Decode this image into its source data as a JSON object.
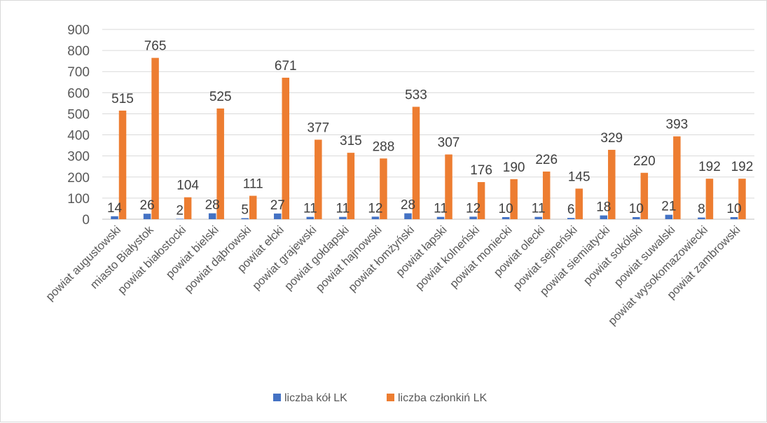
{
  "chart_data": {
    "type": "bar",
    "title": "",
    "xlabel": "",
    "ylabel": "",
    "ylim": [
      0,
      900
    ],
    "yticks": [
      0,
      100,
      200,
      300,
      400,
      500,
      600,
      700,
      800,
      900
    ],
    "grid": true,
    "legend_position": "bottom",
    "categories": [
      "powiat augustowski",
      "miasto Białystok",
      "powiat białostocki",
      "powiat bielski",
      "powiat dąbrowski",
      "powiat ełcki",
      "powiat grajewski",
      "powiat gołdapski",
      "powiat hajnowski",
      "powiat łomżyński",
      "powiat łapski",
      "powiat kolneński",
      "powiat moniecki",
      "powiat olecki",
      "powiat sejneński",
      "powiat siemiatycki",
      "powiat sokólski",
      "powiat suwalski",
      "powiat wysokomazowiecki",
      "powiat zambrowski"
    ],
    "series": [
      {
        "name": "liczba kół LK",
        "color": "#4472c4",
        "values": [
          14,
          26,
          2,
          28,
          5,
          27,
          11,
          11,
          12,
          28,
          11,
          12,
          10,
          11,
          6,
          18,
          10,
          21,
          8,
          10
        ]
      },
      {
        "name": "liczba członkiń LK",
        "color": "#ed7d31",
        "values": [
          515,
          765,
          104,
          525,
          111,
          671,
          377,
          315,
          288,
          533,
          307,
          176,
          190,
          226,
          145,
          329,
          220,
          393,
          192,
          192
        ]
      }
    ]
  }
}
